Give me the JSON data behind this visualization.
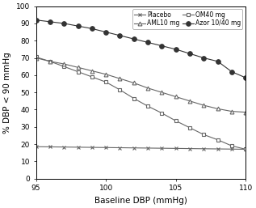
{
  "title": "",
  "xlabel": "Baseline DBP (mmHg)",
  "ylabel": "% DBP < 90 mmHg",
  "xlim": [
    95,
    110
  ],
  "ylim": [
    0,
    100
  ],
  "xticks": [
    95,
    100,
    105,
    110
  ],
  "yticks": [
    0,
    10,
    20,
    30,
    40,
    50,
    60,
    70,
    80,
    90,
    100
  ],
  "series": [
    {
      "label": "Placebo",
      "x": [
        95,
        96,
        97,
        98,
        99,
        100,
        101,
        102,
        103,
        104,
        105,
        106,
        107,
        108,
        109,
        110
      ],
      "y": [
        18.5,
        18.4,
        18.3,
        18.2,
        18.1,
        18.0,
        17.9,
        17.8,
        17.7,
        17.6,
        17.5,
        17.4,
        17.3,
        17.2,
        17.1,
        17.0
      ],
      "color": "#666666",
      "marker": "x",
      "markersize": 3.5,
      "linewidth": 0.8,
      "linestyle": "-",
      "markerfacecolor": "#666666",
      "markeredgecolor": "#666666"
    },
    {
      "label": "OM40 mg",
      "x": [
        95,
        96,
        97,
        98,
        99,
        100,
        101,
        102,
        103,
        104,
        105,
        106,
        107,
        108,
        109,
        110
      ],
      "y": [
        70.5,
        68.0,
        65.0,
        62.0,
        59.0,
        56.0,
        51.5,
        46.5,
        42.0,
        38.0,
        33.5,
        29.5,
        25.5,
        22.5,
        19.0,
        17.0
      ],
      "color": "#666666",
      "marker": "s",
      "markersize": 3.5,
      "linewidth": 0.8,
      "linestyle": "-",
      "markerfacecolor": "white",
      "markeredgecolor": "#666666"
    },
    {
      "label": "AML10 mg",
      "x": [
        95,
        96,
        97,
        98,
        99,
        100,
        101,
        102,
        103,
        104,
        105,
        106,
        107,
        108,
        109,
        110
      ],
      "y": [
        70.0,
        68.0,
        66.5,
        64.5,
        62.5,
        60.5,
        58.0,
        55.5,
        52.5,
        50.0,
        47.5,
        45.0,
        42.5,
        40.5,
        39.0,
        38.5
      ],
      "color": "#666666",
      "marker": "^",
      "markersize": 3.5,
      "linewidth": 0.8,
      "linestyle": "-",
      "markerfacecolor": "white",
      "markeredgecolor": "#666666"
    },
    {
      "label": "Azor 10/40 mg",
      "x": [
        95,
        96,
        97,
        98,
        99,
        100,
        101,
        102,
        103,
        104,
        105,
        106,
        107,
        108,
        109,
        110
      ],
      "y": [
        92.0,
        91.0,
        90.0,
        88.5,
        87.0,
        85.0,
        83.0,
        81.0,
        79.0,
        77.0,
        75.0,
        72.5,
        70.0,
        68.0,
        62.0,
        58.5
      ],
      "color": "#333333",
      "marker": "o",
      "markersize": 4.0,
      "linewidth": 0.8,
      "linestyle": "-",
      "markerfacecolor": "#333333",
      "markeredgecolor": "#333333"
    }
  ],
  "legend_fontsize": 5.5,
  "tick_fontsize": 6.5,
  "label_fontsize": 7.5,
  "background_color": "#ffffff"
}
